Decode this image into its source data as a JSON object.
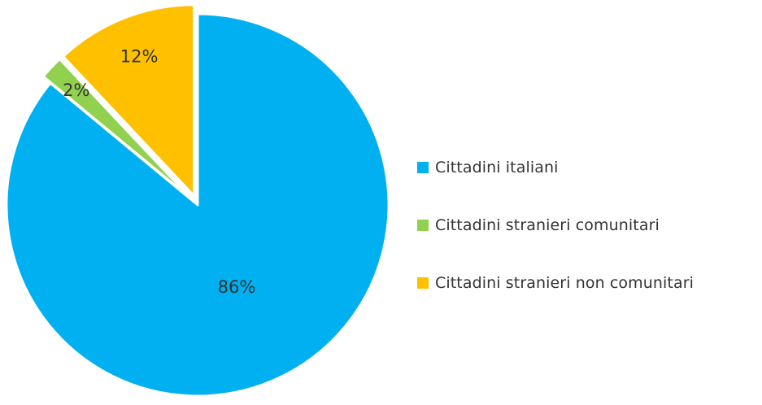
{
  "chart_data": {
    "type": "pie",
    "series": [
      {
        "name": "Cittadini italiani",
        "value": 86,
        "label": "86%",
        "color": "#00B0F0",
        "exploded": false
      },
      {
        "name": "Cittadini stranieri comunitari",
        "value": 2,
        "label": "2%",
        "color": "#92D050",
        "exploded": true
      },
      {
        "name": "Cittadini stranieri non comunitari",
        "value": 12,
        "label": "12%",
        "color": "#FFC000",
        "exploded": true
      }
    ],
    "legend_position": "right"
  }
}
